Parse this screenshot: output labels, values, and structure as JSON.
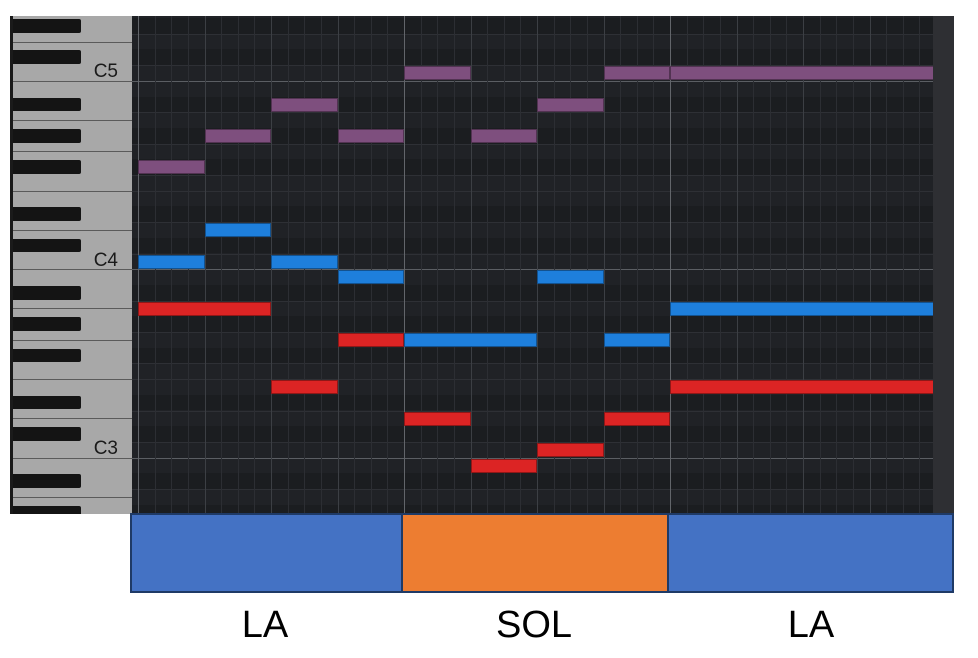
{
  "piano_roll": {
    "octave_labels": [
      {
        "text": "C5",
        "pitch": 72
      },
      {
        "text": "C4",
        "pitch": 60
      },
      {
        "text": "C3",
        "pitch": 48
      }
    ],
    "pitch_range": [
      43,
      75
    ],
    "total_beats": 24,
    "beats_per_bar": 8,
    "colors": {
      "purple": "#7e4f7e",
      "blue": "#1e7fdc",
      "red": "#dc2424",
      "grid_bg": "#202226"
    },
    "notes": [
      {
        "pitch": 66,
        "start": 0,
        "length": 2,
        "voice": "purple"
      },
      {
        "pitch": 68,
        "start": 2,
        "length": 2,
        "voice": "purple"
      },
      {
        "pitch": 70,
        "start": 4,
        "length": 2,
        "voice": "purple"
      },
      {
        "pitch": 68,
        "start": 6,
        "length": 2,
        "voice": "purple"
      },
      {
        "pitch": 72,
        "start": 8,
        "length": 2,
        "voice": "purple"
      },
      {
        "pitch": 68,
        "start": 10,
        "length": 2,
        "voice": "purple"
      },
      {
        "pitch": 70,
        "start": 12,
        "length": 2,
        "voice": "purple"
      },
      {
        "pitch": 72,
        "start": 14,
        "length": 2,
        "voice": "purple"
      },
      {
        "pitch": 72,
        "start": 16,
        "length": 8,
        "voice": "purple"
      },
      {
        "pitch": 60,
        "start": 0,
        "length": 2,
        "voice": "blue"
      },
      {
        "pitch": 62,
        "start": 2,
        "length": 2,
        "voice": "blue"
      },
      {
        "pitch": 60,
        "start": 4,
        "length": 2,
        "voice": "blue"
      },
      {
        "pitch": 59,
        "start": 6,
        "length": 2,
        "voice": "blue"
      },
      {
        "pitch": 55,
        "start": 8,
        "length": 4,
        "voice": "blue"
      },
      {
        "pitch": 59,
        "start": 12,
        "length": 2,
        "voice": "blue"
      },
      {
        "pitch": 55,
        "start": 14,
        "length": 2,
        "voice": "blue"
      },
      {
        "pitch": 57,
        "start": 16,
        "length": 8,
        "voice": "blue"
      },
      {
        "pitch": 57,
        "start": 0,
        "length": 4,
        "voice": "red"
      },
      {
        "pitch": 52,
        "start": 4,
        "length": 2,
        "voice": "red"
      },
      {
        "pitch": 55,
        "start": 6,
        "length": 2,
        "voice": "red"
      },
      {
        "pitch": 50,
        "start": 8,
        "length": 2,
        "voice": "red"
      },
      {
        "pitch": 47,
        "start": 10,
        "length": 2,
        "voice": "red"
      },
      {
        "pitch": 48,
        "start": 12,
        "length": 2,
        "voice": "red"
      },
      {
        "pitch": 50,
        "start": 14,
        "length": 2,
        "voice": "red"
      },
      {
        "pitch": 52,
        "start": 16,
        "length": 8,
        "voice": "red"
      }
    ]
  },
  "chord_track": {
    "chords": [
      {
        "label": "LA",
        "beats": 8,
        "color": "#4472c4"
      },
      {
        "label": "SOL",
        "beats": 8,
        "color": "#ed7d31"
      },
      {
        "label": "LA",
        "beats": 8,
        "color": "#4472c4"
      }
    ]
  }
}
